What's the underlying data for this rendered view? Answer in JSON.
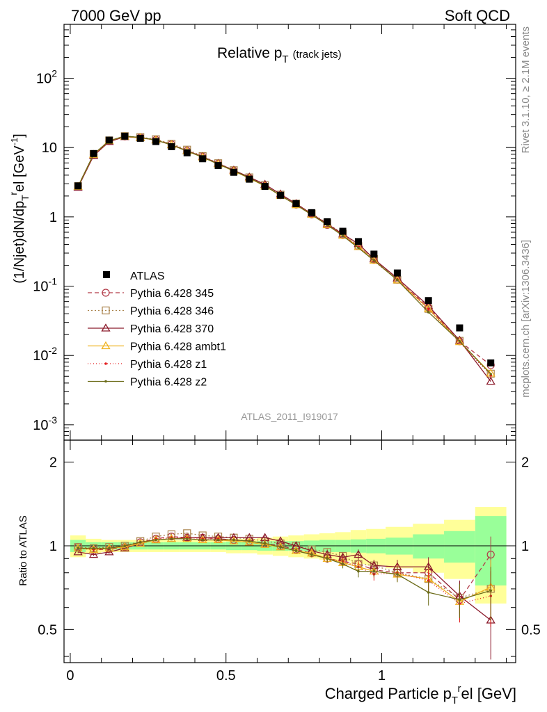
{
  "header": {
    "energy_label": "7000 GeV pp",
    "process_label": "Soft QCD",
    "title_main": "Relative p",
    "title_sub": "T",
    "title_paren": "(track jets)",
    "analysis_id": "ATLAS_2011_I919017",
    "side_rivet": "Rivet 3.1.10, ≥ 2.1M events",
    "side_mcplots": "mcplots.cern.ch [arXiv:1306.3436]"
  },
  "axes": {
    "ylabel_main": "(1/Njet)dN/dp",
    "ylabel_main_sub": "T",
    "ylabel_main_sup": "r",
    "ylabel_main_tail": "el [GeV",
    "ylabel_main_unit_sup": "-1",
    "ylabel_main_close": "]",
    "ylabel_ratio": "Ratio to ATLAS",
    "xlabel": "Charged Particle p",
    "xlabel_sub": "T",
    "xlabel_sup": "r",
    "xlabel_tail": "el [GeV]",
    "x_ticks": [
      "0",
      "0.5",
      "1"
    ],
    "y_main_ticks": [
      {
        "v": 0.001,
        "base": "10",
        "exp": "-3"
      },
      {
        "v": 0.01,
        "base": "10",
        "exp": "-2"
      },
      {
        "v": 0.1,
        "base": "10",
        "exp": "-1"
      },
      {
        "v": 1,
        "base": "1",
        "exp": ""
      },
      {
        "v": 10,
        "base": "10",
        "exp": ""
      },
      {
        "v": 100,
        "base": "10",
        "exp": "2"
      }
    ],
    "y_ratio_ticks": [
      "0.5",
      "1",
      "2"
    ]
  },
  "chart_data": {
    "type": "scatter",
    "x_range": [
      -0.02,
      1.43
    ],
    "main_y_range": [
      0.0006,
      600
    ],
    "main_y_scale": "log",
    "ratio_y_range": [
      0.38,
      2.4
    ],
    "ratio_y_scale": "log",
    "legend_position": "lower-left",
    "x": [
      0.025,
      0.075,
      0.125,
      0.175,
      0.225,
      0.275,
      0.325,
      0.375,
      0.425,
      0.475,
      0.525,
      0.575,
      0.625,
      0.675,
      0.725,
      0.775,
      0.825,
      0.875,
      0.925,
      0.975,
      1.05,
      1.15,
      1.25,
      1.35
    ],
    "data": {
      "name": "ATLAS",
      "color": "#000000",
      "values": [
        2.8,
        8.2,
        12.8,
        14.6,
        13.6,
        12.2,
        10.3,
        8.4,
        6.9,
        5.5,
        4.4,
        3.5,
        2.75,
        2.05,
        1.55,
        1.15,
        0.85,
        0.62,
        0.44,
        0.29,
        0.155,
        0.062,
        0.025,
        0.0078
      ]
    },
    "band_inner": [
      0.05,
      0.03,
      0.03,
      0.03,
      0.03,
      0.03,
      0.03,
      0.03,
      0.03,
      0.03,
      0.035,
      0.035,
      0.04,
      0.04,
      0.04,
      0.045,
      0.05,
      0.05,
      0.055,
      0.06,
      0.07,
      0.1,
      0.13,
      0.28
    ],
    "band_outer": [
      0.09,
      0.06,
      0.05,
      0.05,
      0.05,
      0.05,
      0.05,
      0.05,
      0.05,
      0.05,
      0.06,
      0.06,
      0.07,
      0.08,
      0.09,
      0.1,
      0.11,
      0.12,
      0.14,
      0.15,
      0.17,
      0.2,
      0.24,
      0.38
    ],
    "series": [
      {
        "name": "Pythia 6.428 345",
        "color": "#b23a48",
        "marker": "circle",
        "dash": "6,4",
        "ratio": [
          0.99,
          0.97,
          0.97,
          0.99,
          1.03,
          1.06,
          1.08,
          1.07,
          1.07,
          1.06,
          1.05,
          1.04,
          1.02,
          1.0,
          0.97,
          0.94,
          0.9,
          0.88,
          0.86,
          0.82,
          0.8,
          0.8,
          0.64,
          0.93
        ],
        "err": [
          0.01,
          0.01,
          0.01,
          0.01,
          0.01,
          0.01,
          0.01,
          0.01,
          0.01,
          0.01,
          0.01,
          0.01,
          0.02,
          0.02,
          0.02,
          0.02,
          0.03,
          0.03,
          0.04,
          0.04,
          0.05,
          0.07,
          0.09,
          0.15
        ]
      },
      {
        "name": "Pythia 6.428 346",
        "color": "#a9824a",
        "marker": "square",
        "dash": "2,3",
        "ratio": [
          0.99,
          0.98,
          0.99,
          1.0,
          1.04,
          1.08,
          1.1,
          1.11,
          1.09,
          1.08,
          1.07,
          1.06,
          1.04,
          1.02,
          1.0,
          0.97,
          0.95,
          0.92,
          0.86,
          0.85,
          0.8,
          0.76,
          0.65,
          0.7
        ],
        "err": [
          0.01,
          0.01,
          0.01,
          0.01,
          0.01,
          0.01,
          0.01,
          0.01,
          0.01,
          0.01,
          0.01,
          0.01,
          0.02,
          0.02,
          0.02,
          0.02,
          0.03,
          0.03,
          0.04,
          0.04,
          0.05,
          0.07,
          0.09,
          0.15
        ]
      },
      {
        "name": "Pythia 6.428 370",
        "color": "#8b1a2b",
        "marker": "triangle",
        "dash": "",
        "ratio": [
          0.95,
          0.93,
          0.95,
          0.98,
          1.02,
          1.05,
          1.06,
          1.07,
          1.07,
          1.07,
          1.07,
          1.07,
          1.07,
          1.04,
          1.0,
          0.96,
          0.93,
          0.91,
          0.93,
          0.85,
          0.84,
          0.84,
          0.66,
          0.54
        ],
        "err": [
          0.01,
          0.01,
          0.01,
          0.01,
          0.01,
          0.01,
          0.01,
          0.01,
          0.01,
          0.01,
          0.01,
          0.01,
          0.02,
          0.02,
          0.02,
          0.02,
          0.03,
          0.03,
          0.04,
          0.04,
          0.05,
          0.07,
          0.09,
          0.2
        ]
      },
      {
        "name": "Pythia 6.428 ambt1",
        "color": "#f0b323",
        "marker": "triangle",
        "dash": "",
        "ratio": [
          0.98,
          0.97,
          0.98,
          0.99,
          1.02,
          1.05,
          1.06,
          1.06,
          1.05,
          1.05,
          1.04,
          1.03,
          1.01,
          0.99,
          0.96,
          0.94,
          0.9,
          0.87,
          0.84,
          0.81,
          0.79,
          0.76,
          0.63,
          0.71
        ],
        "err": [
          0.01,
          0.01,
          0.01,
          0.01,
          0.01,
          0.01,
          0.01,
          0.01,
          0.01,
          0.01,
          0.01,
          0.01,
          0.02,
          0.02,
          0.02,
          0.02,
          0.03,
          0.03,
          0.04,
          0.04,
          0.05,
          0.07,
          0.09,
          0.18
        ]
      },
      {
        "name": "Pythia 6.428 z1",
        "color": "#e31a1c",
        "marker": "dot",
        "dash": "1,3",
        "ratio": [
          0.98,
          0.97,
          0.98,
          1.0,
          1.03,
          1.06,
          1.07,
          1.07,
          1.06,
          1.06,
          1.05,
          1.04,
          1.02,
          0.99,
          0.96,
          0.93,
          0.9,
          0.88,
          0.84,
          0.79,
          0.8,
          0.75,
          0.62,
          0.66
        ],
        "err": [
          0.01,
          0.01,
          0.01,
          0.01,
          0.01,
          0.01,
          0.01,
          0.01,
          0.01,
          0.01,
          0.01,
          0.01,
          0.02,
          0.02,
          0.02,
          0.02,
          0.03,
          0.03,
          0.04,
          0.04,
          0.05,
          0.07,
          0.09,
          0.15
        ]
      },
      {
        "name": "Pythia 6.428 z2",
        "color": "#6b6b18",
        "marker": "dot",
        "dash": "",
        "ratio": [
          0.98,
          0.98,
          0.98,
          1.0,
          1.03,
          1.05,
          1.06,
          1.06,
          1.05,
          1.05,
          1.05,
          1.04,
          1.02,
          0.99,
          0.96,
          0.93,
          0.9,
          0.86,
          0.81,
          0.81,
          0.79,
          0.68,
          0.64,
          0.69
        ],
        "err": [
          0.01,
          0.01,
          0.01,
          0.01,
          0.01,
          0.01,
          0.01,
          0.01,
          0.01,
          0.01,
          0.01,
          0.01,
          0.02,
          0.02,
          0.02,
          0.02,
          0.03,
          0.03,
          0.04,
          0.04,
          0.05,
          0.07,
          0.09,
          0.15
        ]
      }
    ]
  },
  "colors": {
    "band_inner": "#99ff99",
    "band_outer": "#ffff99",
    "frame": "#000000",
    "side_text": "#888888",
    "analysis_text": "#999999"
  }
}
